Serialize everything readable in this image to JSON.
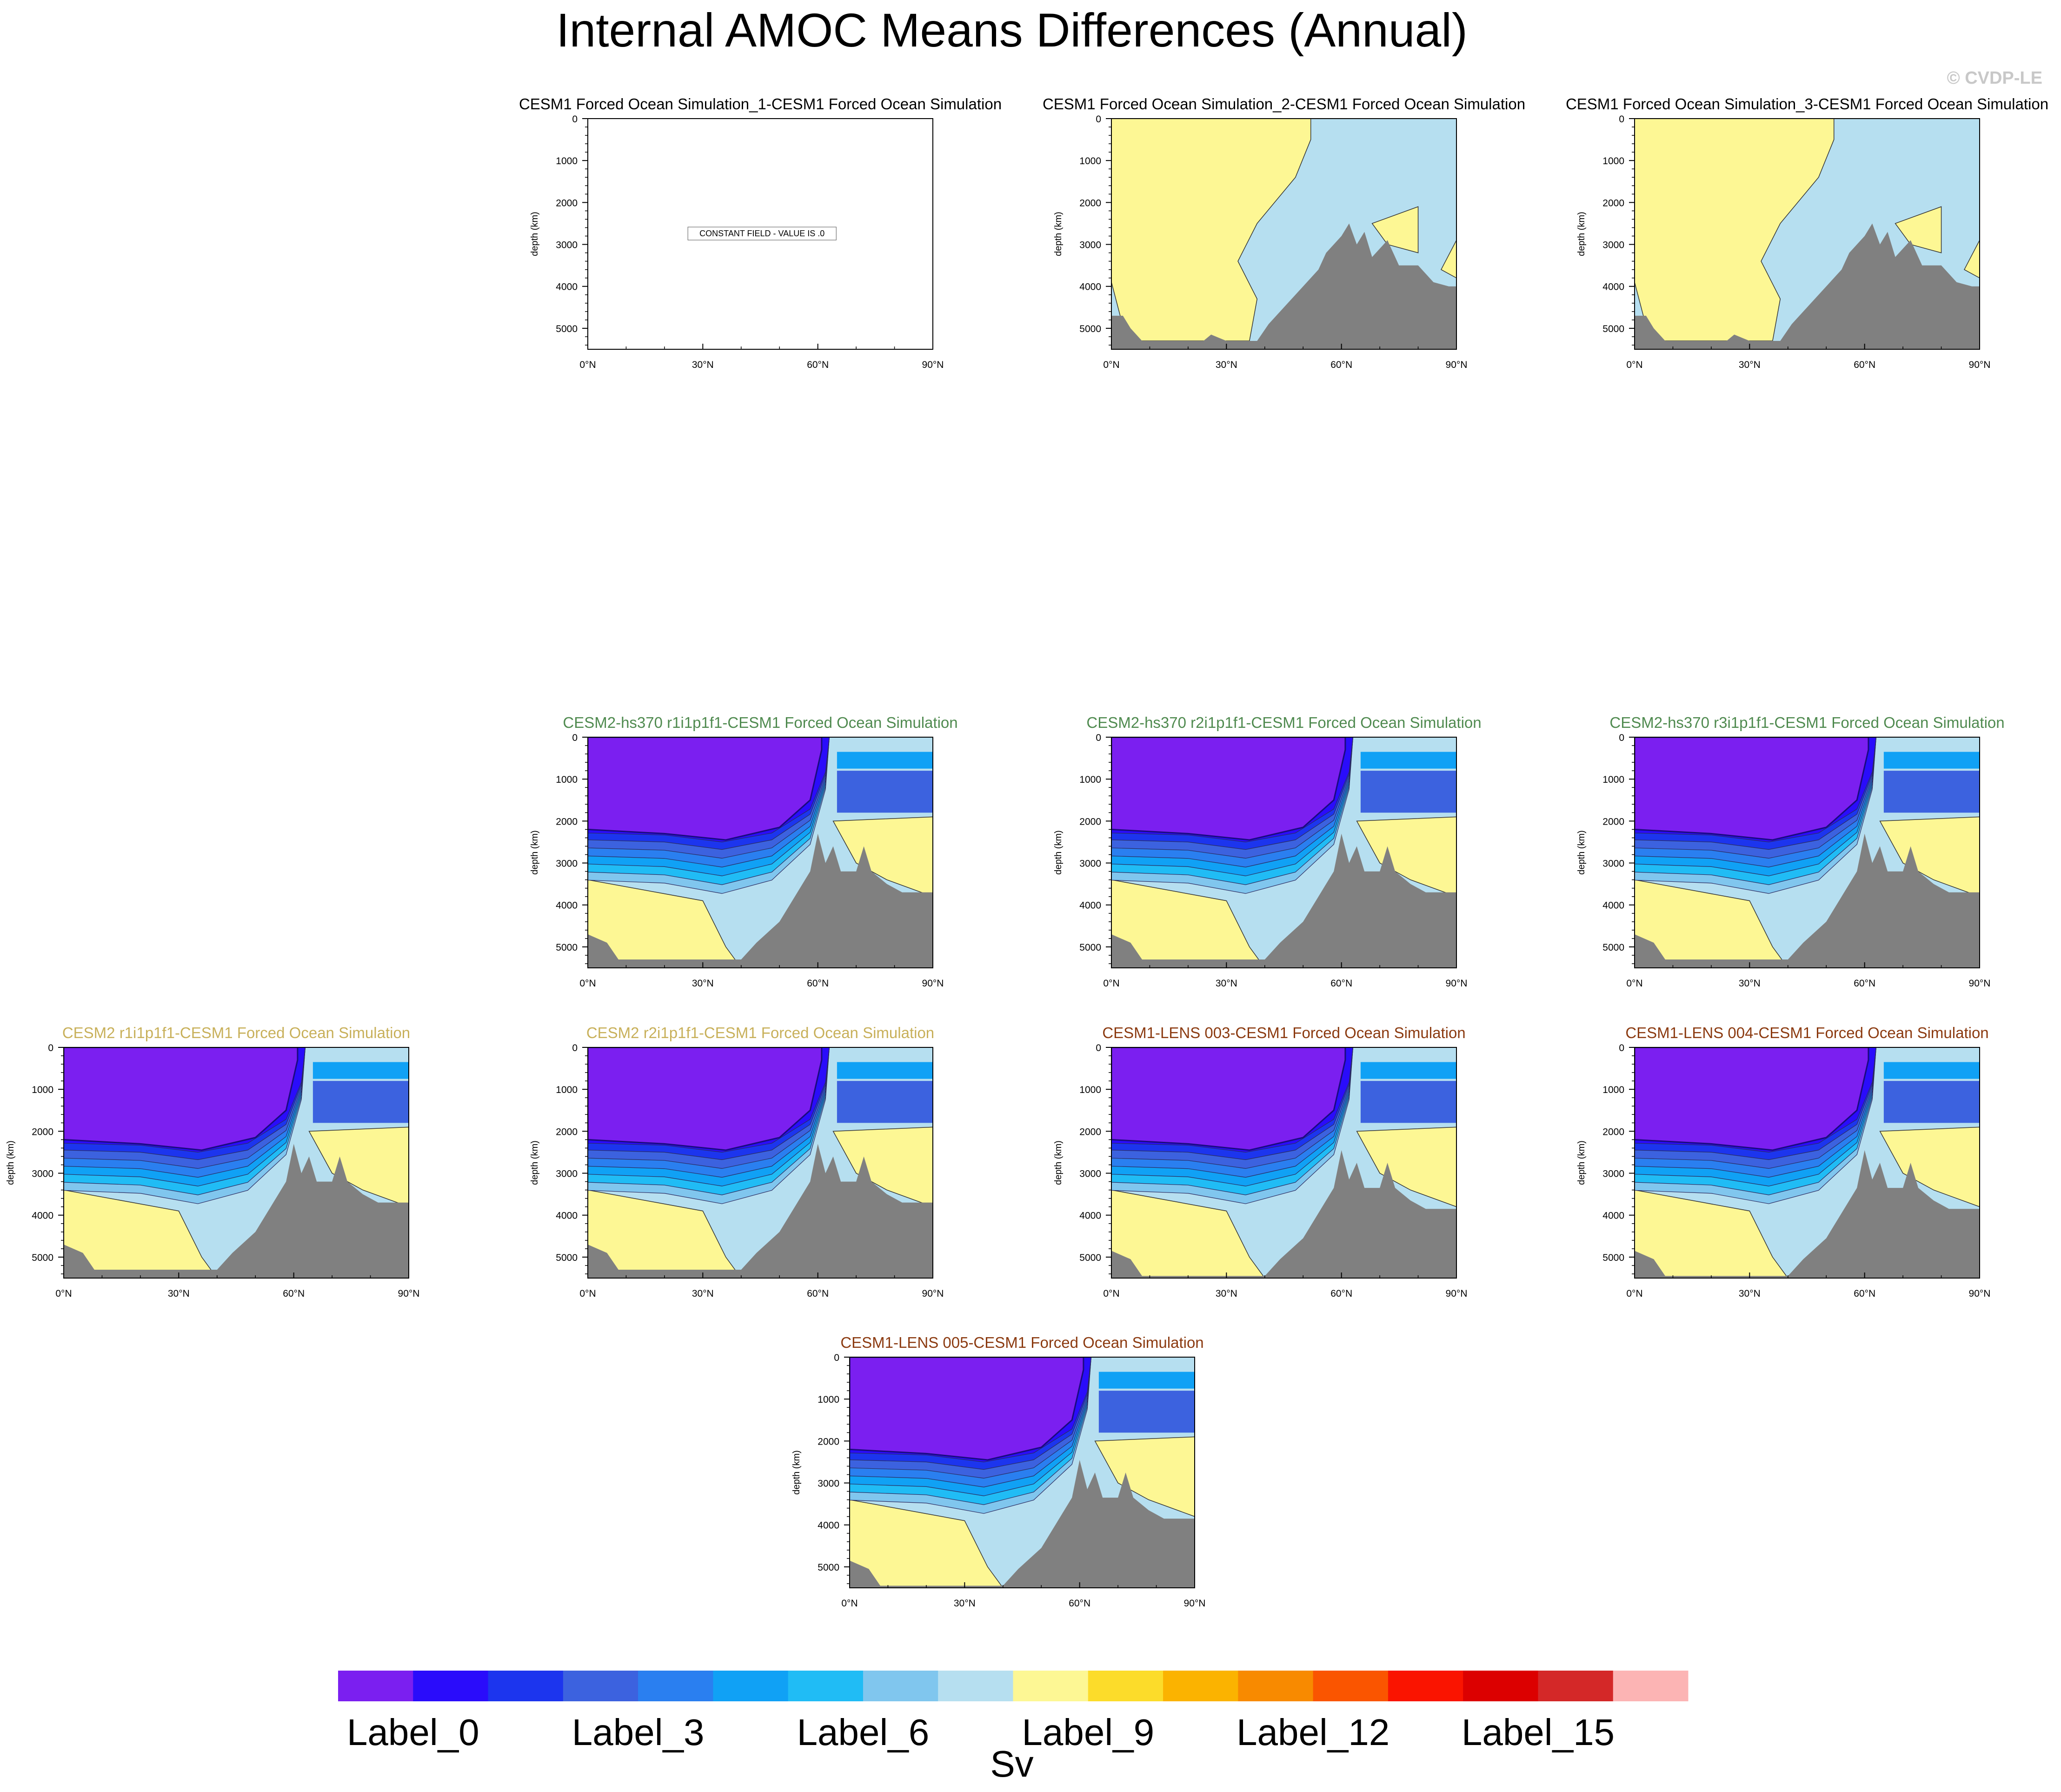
{
  "title": "Internal AMOC Means Differences (Annual)",
  "copyright": "© CVDP-LE",
  "colors": {
    "black": "#000000",
    "green": "#4f8a4f",
    "gold": "#c8b05a",
    "brown": "#8b3a10",
    "land": "#808080"
  },
  "chart_data": {
    "type": "contour",
    "xlabel": "",
    "ylabel": "depth (km)",
    "x_ticks": [
      "0°N",
      "30°N",
      "60°N",
      "90°N"
    ],
    "x_range": [
      0,
      90
    ],
    "y_ticks": [
      "0",
      "1000",
      "2000",
      "3000",
      "4000",
      "5000"
    ],
    "y_tick_values": [
      0,
      1000,
      2000,
      3000,
      4000,
      5000
    ],
    "y_range": [
      0,
      5500
    ],
    "colorbar": {
      "units": "Sv",
      "labels": [
        "Label_0",
        "Label_3",
        "Label_6",
        "Label_9",
        "Label_12",
        "Label_15"
      ],
      "colors": [
        "#7b1ff0",
        "#2a0cfb",
        "#1c35ee",
        "#3c62df",
        "#2a7ff0",
        "#10a1f5",
        "#20bcf5",
        "#80c6ee",
        "#b6dff0",
        "#fdf794",
        "#fcdc2a",
        "#fbb300",
        "#f88a00",
        "#fa5500",
        "#fa1400",
        "#dc0000",
        "#d42828",
        "#fcb4b4"
      ]
    },
    "panels": [
      {
        "title": "CESM1 Forced Ocean Simulation_1-CESM1 Forced Ocean Simulation",
        "title_color": "black",
        "pattern": "constant",
        "annotation": "CONSTANT FIELD - VALUE IS .0"
      },
      {
        "title": "CESM1 Forced Ocean Simulation_2-CESM1 Forced Ocean Simulation",
        "title_color": "black",
        "pattern": "light"
      },
      {
        "title": "CESM1 Forced Ocean Simulation_3-CESM1 Forced Ocean Simulation",
        "title_color": "black",
        "pattern": "light"
      },
      {
        "title": "CESM2-hs370 r1i1p1f1-CESM1 Forced Ocean Simulation",
        "title_color": "green",
        "pattern": "strong"
      },
      {
        "title": "CESM2-hs370 r2i1p1f1-CESM1 Forced Ocean Simulation",
        "title_color": "green",
        "pattern": "strong"
      },
      {
        "title": "CESM2-hs370 r3i1p1f1-CESM1 Forced Ocean Simulation",
        "title_color": "green",
        "pattern": "strong"
      },
      {
        "title": "CESM2 r1i1p1f1-CESM1 Forced Ocean Simulation",
        "title_color": "gold",
        "pattern": "strong"
      },
      {
        "title": "CESM2 r2i1p1f1-CESM1 Forced Ocean Simulation",
        "title_color": "gold",
        "pattern": "strong"
      },
      {
        "title": "CESM1-LENS 003-CESM1 Forced Ocean Simulation",
        "title_color": "brown",
        "pattern": "lens"
      },
      {
        "title": "CESM1-LENS 004-CESM1 Forced Ocean Simulation",
        "title_color": "brown",
        "pattern": "lens"
      },
      {
        "title": "CESM1-LENS 005-CESM1 Forced Ocean Simulation",
        "title_color": "brown",
        "pattern": "lens"
      }
    ]
  }
}
